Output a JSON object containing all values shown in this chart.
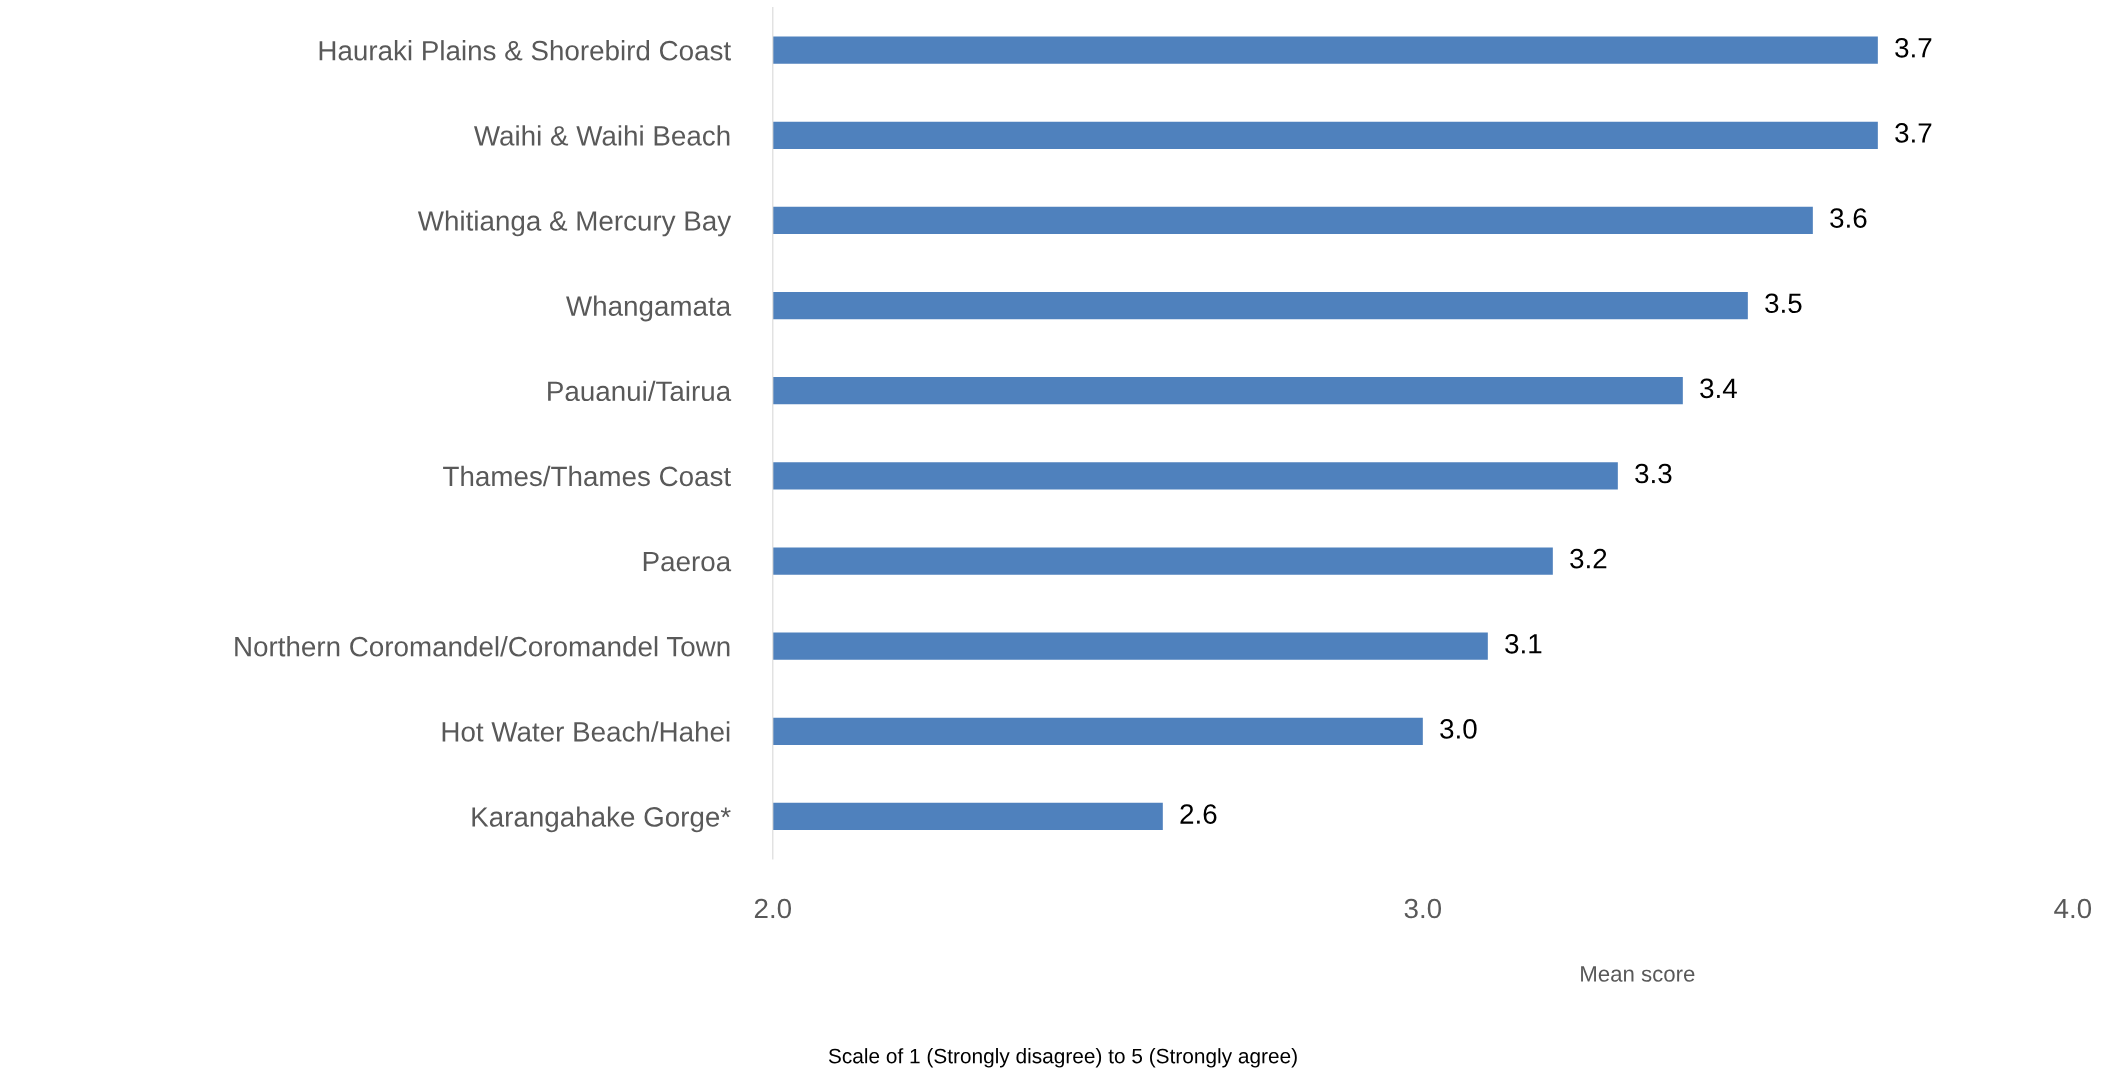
{
  "chart_data": {
    "type": "bar",
    "orientation": "horizontal",
    "categories": [
      "Hauraki Plains & Shorebird Coast",
      "Waihi & Waihi Beach",
      "Whitianga & Mercury Bay",
      "Whangamata",
      "Pauanui/Tairua",
      "Thames/Thames Coast",
      "Paeroa",
      "Northern Coromandel/Coromandel Town",
      "Hot Water Beach/Hahei",
      "Karangahake Gorge*"
    ],
    "values": [
      3.7,
      3.7,
      3.6,
      3.5,
      3.4,
      3.3,
      3.2,
      3.1,
      3.0,
      2.6
    ],
    "color": "#4f81bd",
    "xlim": [
      2,
      4
    ],
    "xticks": [
      {
        "value": 2,
        "label": "2.0"
      },
      {
        "value": 3,
        "label": "3.0"
      },
      {
        "value": 4,
        "label": "4.0"
      }
    ],
    "xlabel": "Mean score",
    "value_labels": [
      "3.7",
      "3.7",
      "3.6",
      "3.5",
      "3.4",
      "3.3",
      "3.2",
      "3.1",
      "3.0",
      "2.6"
    ],
    "grid": false,
    "legend": false,
    "annotations": [
      "Scale of 1 (Strongly disagree) to 5 (Strongly agree)"
    ]
  }
}
